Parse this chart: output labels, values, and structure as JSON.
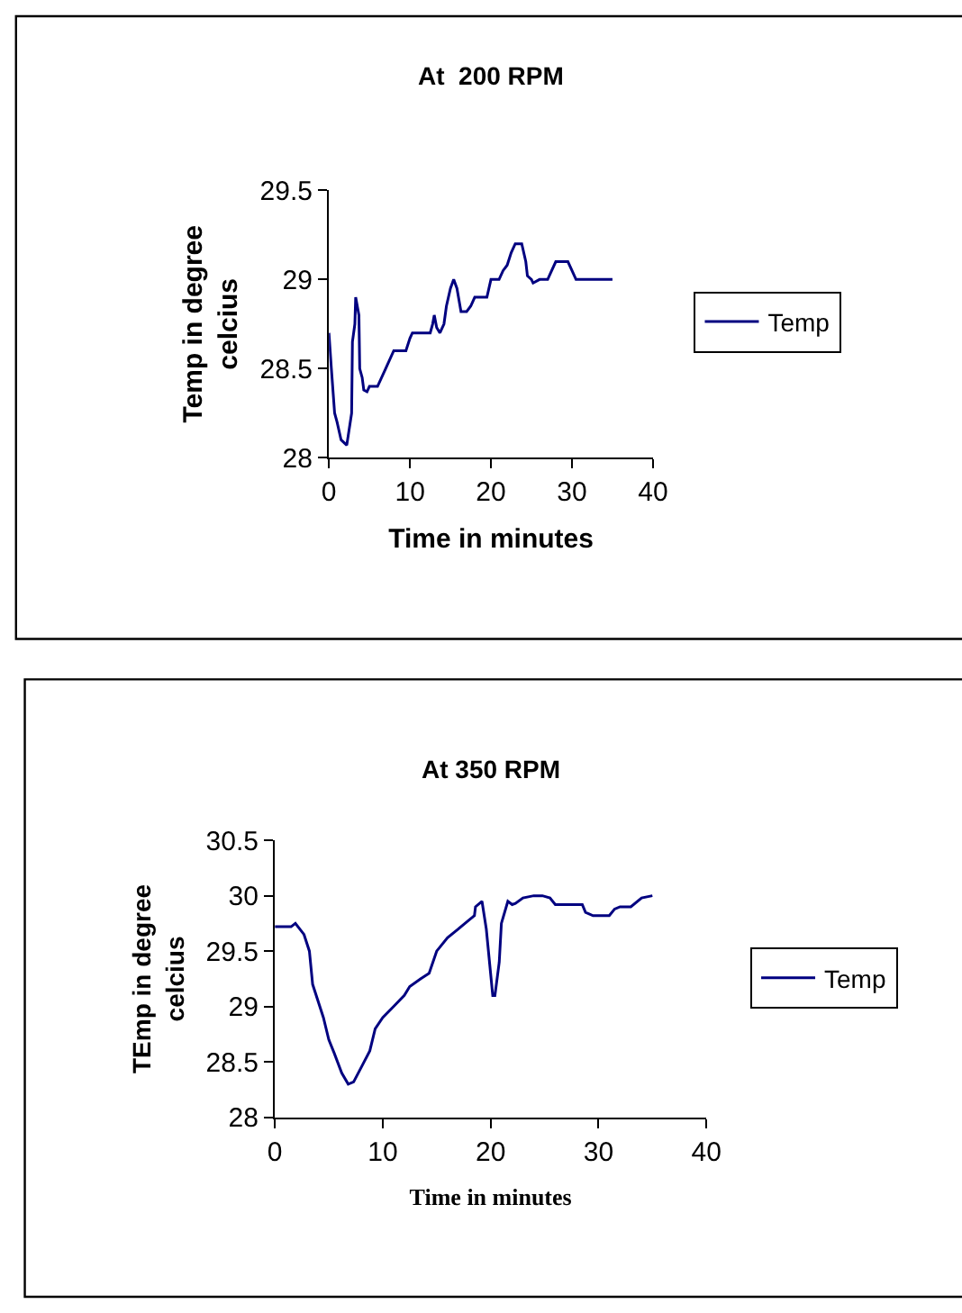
{
  "chart_data": [
    {
      "type": "line",
      "title": "At  200 RPM",
      "xlabel": "Time in minutes",
      "ylabel": "Temp in degree celcius",
      "xlim": [
        0,
        40
      ],
      "xticks": [
        0,
        10,
        20,
        30,
        40
      ],
      "ylim": [
        28,
        29.5
      ],
      "yticks": [
        28,
        28.5,
        29,
        29.5
      ],
      "grid": false,
      "legend": "right",
      "marker": "none",
      "line_style": "solid",
      "series": [
        {
          "name": "Temp",
          "color": "#000080",
          "x": [
            0,
            0.3,
            0.7,
            1,
            1.5,
            2.2,
            2.8,
            2.9,
            3.2,
            3.3,
            3.7,
            3.8,
            4.1,
            4.3,
            4.7,
            5,
            6,
            7,
            8,
            9.5,
            10,
            10.3,
            12.5,
            12.8,
            13,
            13.3,
            13.7,
            14.2,
            14.5,
            15,
            15.4,
            15.8,
            16.3,
            17,
            17.5,
            18,
            19.5,
            20,
            21,
            21.5,
            22,
            22.5,
            23,
            23.8,
            24.3,
            24.5,
            25,
            25.2,
            26,
            27,
            27.5,
            28,
            29.5,
            30,
            30.5,
            31,
            35
          ],
          "values": [
            28.7,
            28.5,
            28.25,
            28.2,
            28.1,
            28.07,
            28.25,
            28.65,
            28.75,
            28.9,
            28.8,
            28.5,
            28.45,
            28.38,
            28.37,
            28.4,
            28.4,
            28.5,
            28.6,
            28.6,
            28.67,
            28.7,
            28.7,
            28.75,
            28.8,
            28.73,
            28.7,
            28.75,
            28.85,
            28.95,
            29,
            28.95,
            28.82,
            28.82,
            28.85,
            28.9,
            28.9,
            29,
            29,
            29.05,
            29.08,
            29.15,
            29.2,
            29.2,
            29.1,
            29.02,
            29,
            28.98,
            29,
            29,
            29.05,
            29.1,
            29.1,
            29.05,
            29,
            29,
            29
          ]
        }
      ]
    },
    {
      "type": "line",
      "title": "At 350 RPM",
      "xlabel": "Time in minutes",
      "ylabel": "TEmp in degree celcius",
      "xlim": [
        0,
        40
      ],
      "xticks": [
        0,
        10,
        20,
        30,
        40
      ],
      "ylim": [
        28,
        30.5
      ],
      "yticks": [
        28,
        28.5,
        29,
        29.5,
        30,
        30.5
      ],
      "grid": false,
      "legend": "right",
      "marker": "none",
      "line_style": "solid",
      "series": [
        {
          "name": "Temp",
          "color": "#000080",
          "x": [
            0,
            1.5,
            1.9,
            2.7,
            3.2,
            3.5,
            4.5,
            5,
            5.5,
            6.2,
            6.8,
            7.3,
            8,
            8.8,
            9.3,
            10,
            11,
            12,
            12.5,
            13.5,
            14.3,
            15,
            16,
            17,
            18,
            18.5,
            18.6,
            19.2,
            19.6,
            20.2,
            20.4,
            20.8,
            21,
            21.6,
            22,
            22.3,
            23,
            24,
            24.8,
            25.5,
            26,
            28.5,
            28.8,
            29.5,
            31,
            31.5,
            32,
            33,
            34,
            35
          ],
          "values": [
            29.72,
            29.72,
            29.75,
            29.65,
            29.5,
            29.2,
            28.9,
            28.7,
            28.58,
            28.4,
            28.3,
            28.32,
            28.45,
            28.6,
            28.8,
            28.9,
            29,
            29.1,
            29.18,
            29.25,
            29.3,
            29.5,
            29.62,
            29.7,
            29.78,
            29.82,
            29.9,
            29.95,
            29.7,
            29.1,
            29.1,
            29.4,
            29.75,
            29.95,
            29.92,
            29.93,
            29.98,
            30,
            30,
            29.98,
            29.92,
            29.92,
            29.85,
            29.82,
            29.82,
            29.88,
            29.9,
            29.9,
            29.98,
            30
          ]
        }
      ]
    }
  ]
}
